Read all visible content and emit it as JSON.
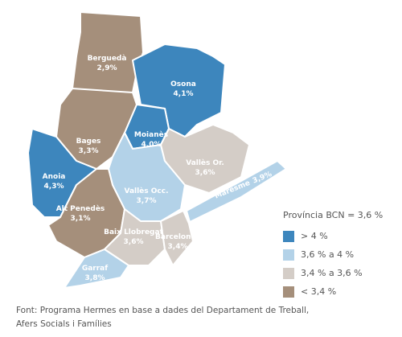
{
  "legend": {
    "title": "Província BCN = 3,6 %",
    "items": [
      {
        "label": "> 4 %",
        "color": "#3d86bd"
      },
      {
        "label": "3,6 % a 4 %",
        "color": "#b3d2e8"
      },
      {
        "label": "3,4 % a 3,6 %",
        "color": "#d4cdc7"
      },
      {
        "label": "< 3,4 %",
        "color": "#a58f7b"
      }
    ]
  },
  "regions": [
    {
      "name": "Berguedà",
      "value": "2,9%",
      "legend_item": 3
    },
    {
      "name": "Osona",
      "value": "4,1%",
      "legend_item": 0
    },
    {
      "name": "Moianès",
      "value": "4,0%",
      "legend_item": 0
    },
    {
      "name": "Bages",
      "value": "3,3%",
      "legend_item": 3
    },
    {
      "name": "Anoia",
      "value": "4,3%",
      "legend_item": 0
    },
    {
      "name": "Vallès Occ.",
      "value": "3,7%",
      "legend_item": 1
    },
    {
      "name": "Vallès Or.",
      "value": "3,6%",
      "legend_item": 2
    },
    {
      "name": "Maresme",
      "value": "3,9%",
      "legend_item": 1
    },
    {
      "name": "Alt Penedès",
      "value": "3,1%",
      "legend_item": 3
    },
    {
      "name": "Baix Llobregat",
      "value": "3,6%",
      "legend_item": 2
    },
    {
      "name": "Barcelonès",
      "value": "3,4%",
      "legend_item": 2
    },
    {
      "name": "Garraf",
      "value": "3,8%",
      "legend_item": 1
    }
  ],
  "source": [
    "Font: Programa Hermes en base a dades del Departament de Treball,",
    "Afers Socials i Famílies"
  ]
}
